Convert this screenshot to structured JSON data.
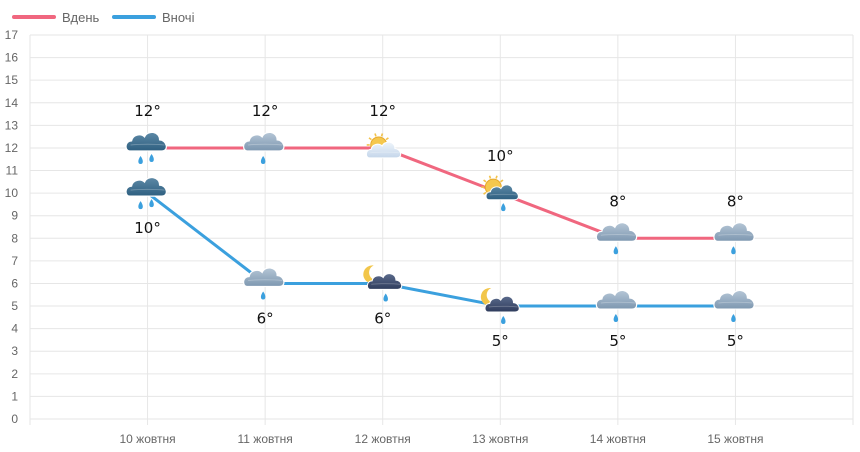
{
  "legend": {
    "day_label": "Вдень",
    "night_label": "Вночі"
  },
  "colors": {
    "day": "#F0677F",
    "night": "#3BA0DE",
    "grid": "#E6E6E6",
    "tick_text": "#666666"
  },
  "chart_data": {
    "type": "line",
    "categories": [
      "10 жовтня",
      "11 жовтня",
      "12 жовтня",
      "13 жовтня",
      "14 жовтня",
      "15 жовтня"
    ],
    "series": [
      {
        "name": "Вдень",
        "values": [
          12,
          12,
          12,
          10,
          8,
          8
        ],
        "labels": [
          "12°",
          "12°",
          "12°",
          "10°",
          "8°",
          "8°"
        ],
        "icons": [
          "cloud-rain-icon",
          "cloud-rain-icon",
          "sun-cloud-icon",
          "sun-cloud-rain-icon",
          "cloud-rain-icon",
          "cloud-rain-icon"
        ]
      },
      {
        "name": "Вночі",
        "values": [
          10,
          6,
          6,
          5,
          5,
          5
        ],
        "labels": [
          "10°",
          "6°",
          "6°",
          "5°",
          "5°",
          "5°"
        ],
        "icons": [
          "cloud-rain-icon",
          "cloud-rain-icon",
          "moon-cloud-rain-icon",
          "moon-cloud-rain-icon",
          "cloud-rain-icon",
          "cloud-rain-icon"
        ]
      }
    ],
    "ylim": [
      0,
      17
    ],
    "yticks": [
      "0",
      "1",
      "2",
      "3",
      "4",
      "5",
      "6",
      "7",
      "8",
      "9",
      "10",
      "11",
      "12",
      "13",
      "14",
      "15",
      "16",
      "17"
    ],
    "grid": true,
    "legend_position": "top-left",
    "title": "",
    "xlabel": "",
    "ylabel": ""
  }
}
